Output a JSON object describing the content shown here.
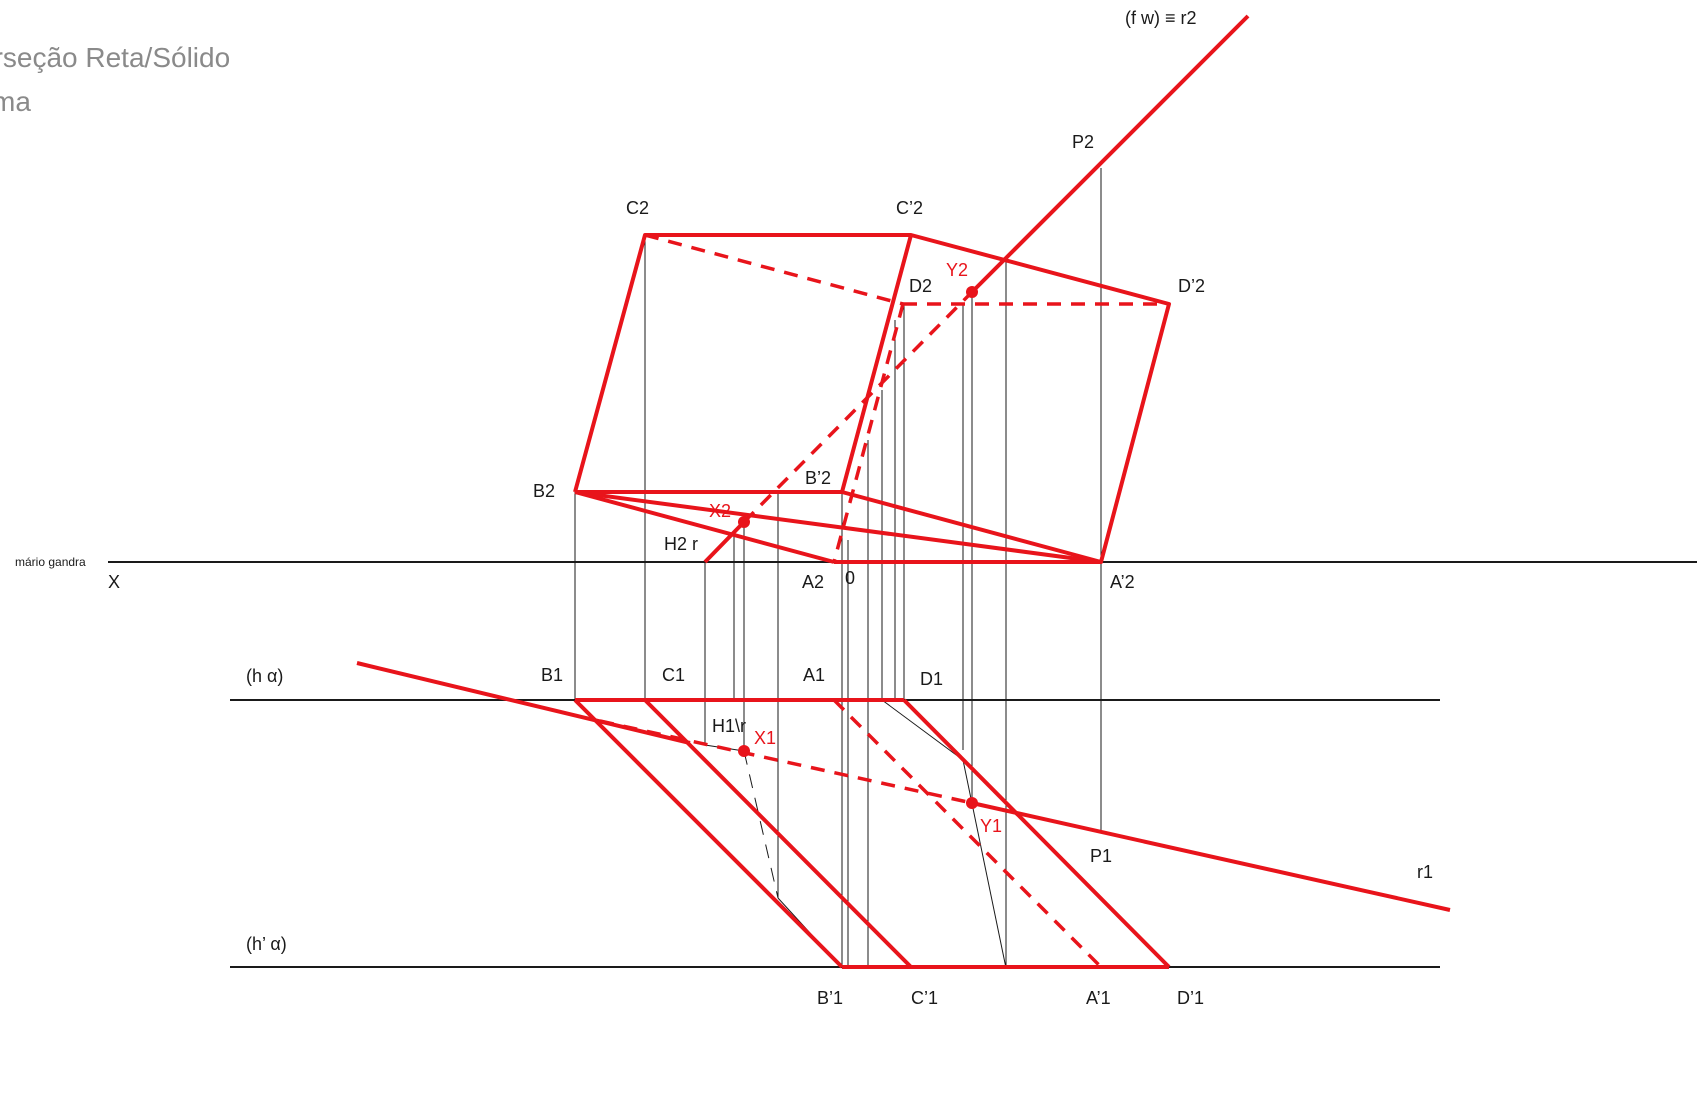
{
  "title": {
    "line1": "erseção Reta/Sólido",
    "line2": "sma"
  },
  "signature": "mário gandra",
  "axis_label": "X",
  "labels": {
    "fw_r2": "(f w) ≡ r2",
    "P2": "P2",
    "C2": "C2",
    "Cp2": "C’2",
    "D2": "D2",
    "Dp2": "D’2",
    "Y2": "Y2",
    "B2": "B2",
    "Bp2": "B’2",
    "X2": "X2",
    "H2r": "H2 r",
    "A2": "A2",
    "zero": "0",
    "Ap2": "A’2",
    "h_alpha": "(h α)",
    "B1": "B1",
    "C1": "C1",
    "A1": "A1",
    "D1": "D1",
    "H1r": "H1\\r",
    "X1": "X1",
    "Y1": "Y1",
    "P1": "P1",
    "r1": "r1",
    "hp_alpha": "(h’ α)",
    "Bp1": "B’1",
    "Cp1": "C’1",
    "Ap1": "A’1",
    "Dp1": "D’1"
  },
  "colors": {
    "construction": "#e8141b",
    "lines": "#1a1a1a",
    "title": "#8a8a8a"
  }
}
